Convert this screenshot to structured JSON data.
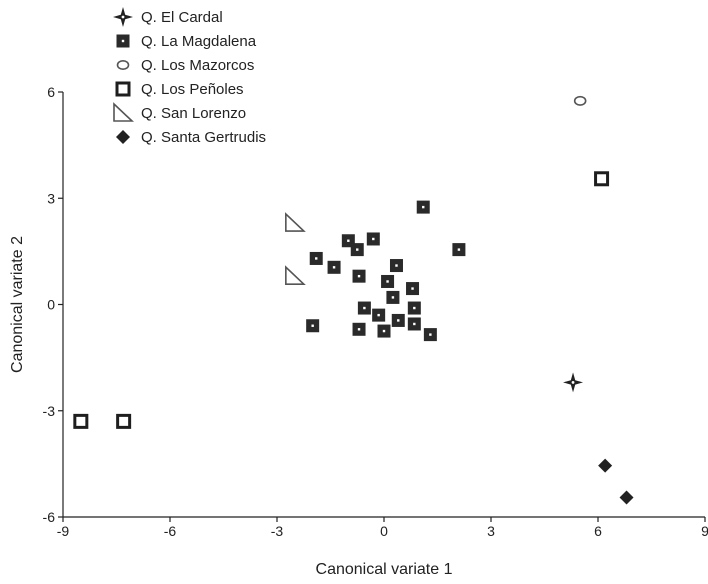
{
  "chart_data": {
    "type": "scatter",
    "title": "",
    "xlabel": "Canonical variate 1",
    "ylabel": "Canonical variate 2",
    "xlim": [
      -9,
      9
    ],
    "ylim": [
      -6,
      6
    ],
    "xticks": [
      -9,
      -6,
      -3,
      0,
      3,
      6,
      9
    ],
    "yticks": [
      -6,
      -3,
      0,
      3,
      6
    ],
    "grid": false,
    "legend_position": "top-left",
    "series": [
      {
        "name": "Q. El Cardal",
        "marker": "star4-filled",
        "points": [
          [
            5.3,
            -2.2
          ]
        ]
      },
      {
        "name": "Q. La Magdalena",
        "marker": "square-filled",
        "points": [
          [
            1.1,
            2.75
          ],
          [
            2.1,
            1.55
          ],
          [
            -1.0,
            1.8
          ],
          [
            -0.3,
            1.85
          ],
          [
            -0.75,
            1.55
          ],
          [
            -1.9,
            1.3
          ],
          [
            -1.4,
            1.05
          ],
          [
            -0.7,
            0.8
          ],
          [
            0.35,
            1.1
          ],
          [
            0.1,
            0.65
          ],
          [
            0.8,
            0.45
          ],
          [
            0.25,
            0.2
          ],
          [
            -0.55,
            -0.1
          ],
          [
            -0.15,
            -0.3
          ],
          [
            0.85,
            -0.1
          ],
          [
            0.4,
            -0.45
          ],
          [
            -0.7,
            -0.7
          ],
          [
            0.0,
            -0.75
          ],
          [
            0.85,
            -0.55
          ],
          [
            1.3,
            -0.85
          ],
          [
            -2.0,
            -0.6
          ]
        ]
      },
      {
        "name": "Q. Los Mazorcos",
        "marker": "circle-open",
        "points": [
          [
            5.5,
            5.75
          ]
        ]
      },
      {
        "name": "Q. Los Peñoles",
        "marker": "square-open",
        "points": [
          [
            6.1,
            3.55
          ],
          [
            -8.5,
            -3.3
          ],
          [
            -7.3,
            -3.3
          ]
        ]
      },
      {
        "name": "Q. San Lorenzo",
        "marker": "triangle-open",
        "points": [
          [
            -2.5,
            2.3
          ],
          [
            -2.5,
            0.8
          ]
        ]
      },
      {
        "name": "Q. Santa Gertrudis",
        "marker": "diamond-filled",
        "points": [
          [
            6.2,
            -4.55
          ],
          [
            6.8,
            -5.45
          ]
        ]
      }
    ]
  }
}
